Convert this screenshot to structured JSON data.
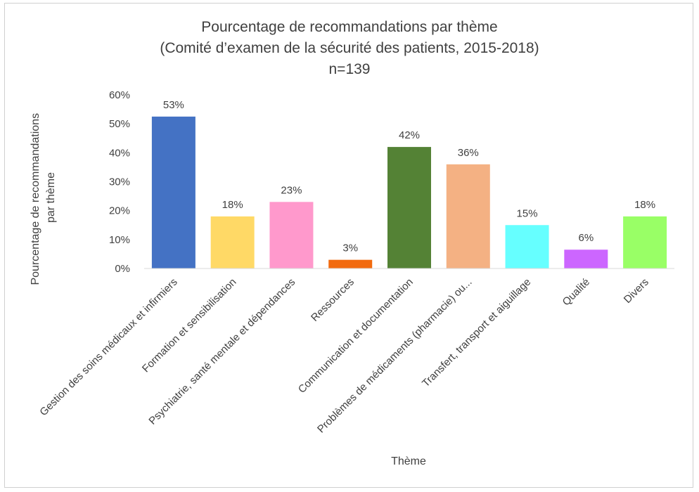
{
  "chart_data": {
    "type": "bar",
    "title": "Pourcentage de recommandations par thème",
    "subtitle": "(Comité d’examen de la sécurité des patients, 2015-2018)",
    "subtitle2": "n=139",
    "xlabel": "Thème",
    "ylabel_line1": "Pourcentage de recommandations",
    "ylabel_line2": "par thème",
    "ylim": [
      0,
      60
    ],
    "yticks": [
      0,
      10,
      20,
      30,
      40,
      50,
      60
    ],
    "ytick_labels": [
      "0%",
      "10%",
      "20%",
      "30%",
      "40%",
      "50%",
      "60%"
    ],
    "grid": false,
    "categories": [
      "Gestion des soins médicaux et infirmiers",
      "Formation et sensibilisation",
      "Psychiatrie, santé mentale et dépendances",
      "Ressources",
      "Communication et documentation",
      "Problèmes de médicaments (pharmacie) ou...",
      "Transfert, transport et aiguillage",
      "Qualité",
      "Divers"
    ],
    "values": [
      52.5,
      18,
      23,
      3,
      42,
      36,
      15,
      6.5,
      18
    ],
    "data_labels": [
      "53%",
      "18%",
      "23%",
      "3%",
      "42%",
      "36%",
      "15%",
      "6%",
      "18%"
    ],
    "colors": [
      "#4472C4",
      "#FFD966",
      "#FF99CC",
      "#F26B0F",
      "#548235",
      "#F4B183",
      "#66FFFF",
      "#CC66FF",
      "#99FF66"
    ]
  }
}
